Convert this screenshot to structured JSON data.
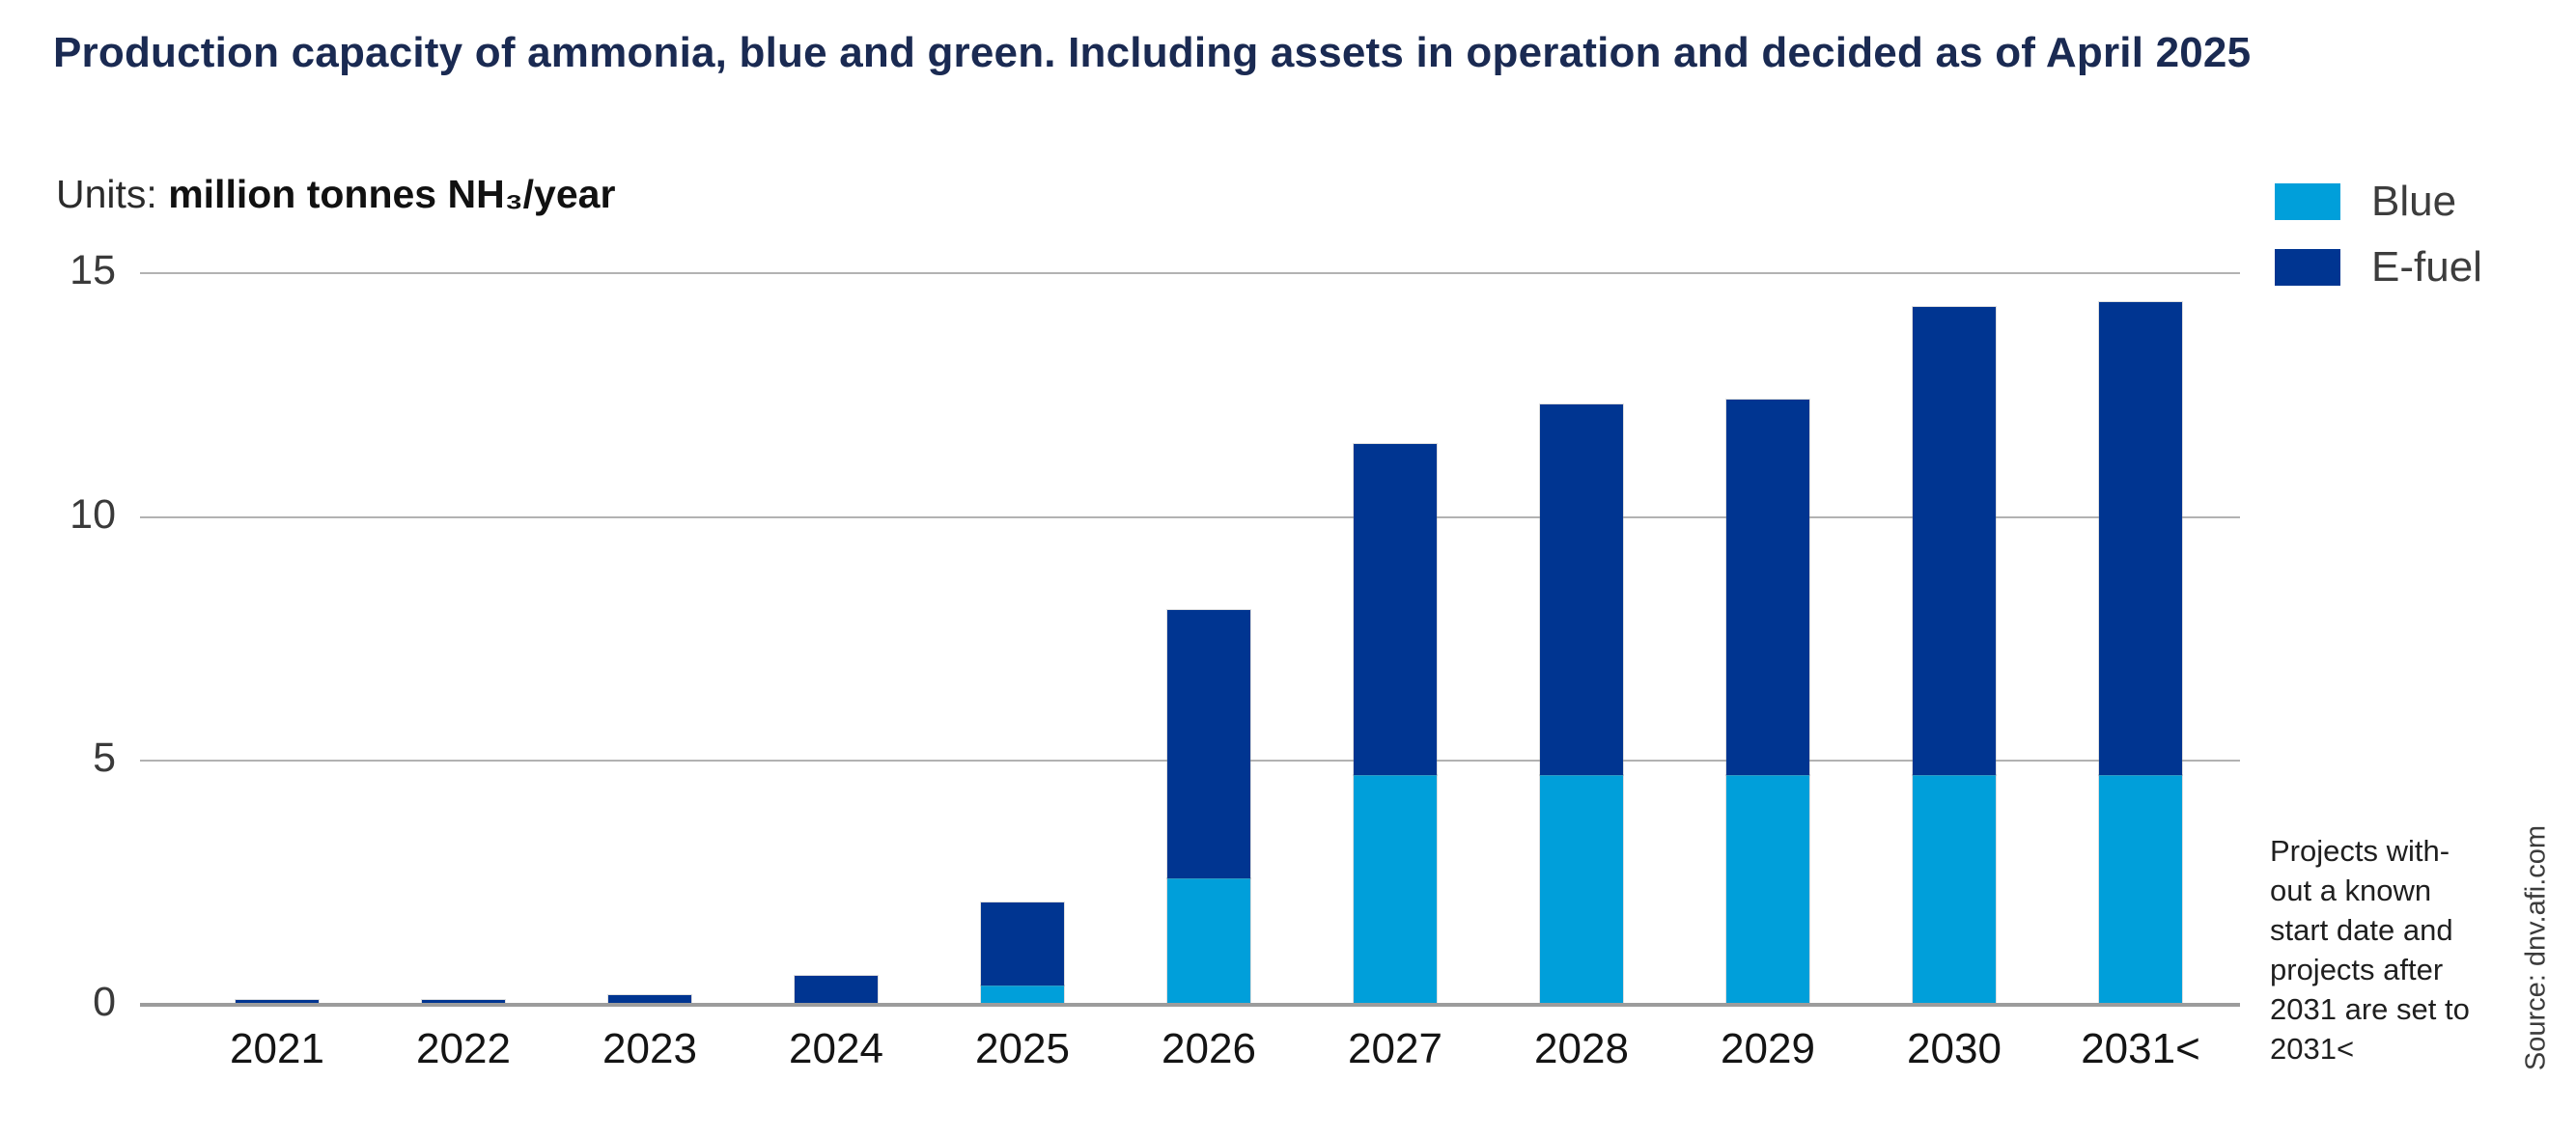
{
  "title": "Production capacity of ammonia, blue and green. Including assets in operation and decided as of April 2025",
  "units": {
    "prefix": "Units: ",
    "value": "million tonnes NH₃/year"
  },
  "legend": {
    "items": [
      {
        "label": "Blue",
        "color": "#009fda"
      },
      {
        "label": "E-fuel",
        "color": "#003591"
      }
    ]
  },
  "annotation": {
    "lines": [
      "Projects with-",
      "out a known",
      "start date and",
      "projects after",
      "2031 are set to",
      "2031<"
    ]
  },
  "source": "Source: dnv.afi.com",
  "colors": {
    "title_navy": "#1a2a52",
    "blue": "#009fda",
    "efuel": "#003591",
    "gridline": "#b2b2b2",
    "axis": "#9c9c9c"
  },
  "chart_data": {
    "type": "bar",
    "stacked": true,
    "title": "Production capacity of ammonia, blue and green. Including assets in operation and decided as of April 2025",
    "xlabel": "",
    "ylabel": "million tonnes NH₃/year",
    "ylim": [
      0,
      15
    ],
    "yticks": [
      0,
      5,
      10,
      15
    ],
    "grid": "horizontal",
    "legend_position": "top-right",
    "categories": [
      "2021",
      "2022",
      "2023",
      "2024",
      "2025",
      "2026",
      "2027",
      "2028",
      "2029",
      "2030",
      "2031<"
    ],
    "series": [
      {
        "name": "Blue",
        "color": "#009fda",
        "values": [
          0,
          0,
          0,
          0,
          0.4,
          2.6,
          4.7,
          4.7,
          4.7,
          4.7,
          4.7
        ]
      },
      {
        "name": "E-fuel",
        "color": "#003591",
        "values": [
          0.1,
          0.1,
          0.2,
          0.6,
          1.7,
          5.5,
          6.8,
          7.6,
          7.7,
          9.6,
          9.7
        ]
      }
    ],
    "totals": [
      0.1,
      0.1,
      0.2,
      0.6,
      2.1,
      8.1,
      11.5,
      12.3,
      12.4,
      14.3,
      14.4
    ]
  }
}
